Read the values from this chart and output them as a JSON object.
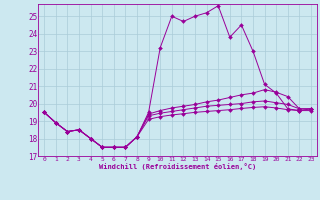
{
  "xlabel": "Windchill (Refroidissement éolien,°C)",
  "xlim": [
    -0.5,
    23.5
  ],
  "ylim": [
    17,
    25.7
  ],
  "yticks": [
    17,
    18,
    19,
    20,
    21,
    22,
    23,
    24,
    25
  ],
  "xticks": [
    0,
    1,
    2,
    3,
    4,
    5,
    6,
    7,
    8,
    9,
    10,
    11,
    12,
    13,
    14,
    15,
    16,
    17,
    18,
    19,
    20,
    21,
    22,
    23
  ],
  "background_color": "#cce8f0",
  "grid_color": "#aaccd8",
  "line_color": "#990099",
  "lines": [
    [
      19.5,
      18.9,
      18.4,
      18.5,
      18.0,
      17.5,
      17.5,
      17.5,
      18.1,
      19.5,
      23.2,
      25.0,
      24.7,
      25.0,
      25.2,
      25.6,
      23.8,
      24.5,
      23.0,
      21.1,
      20.6,
      19.7,
      19.6,
      19.7
    ],
    [
      19.5,
      18.9,
      18.4,
      18.5,
      18.0,
      17.5,
      17.5,
      17.5,
      18.1,
      19.4,
      19.6,
      19.75,
      19.85,
      19.95,
      20.1,
      20.2,
      20.35,
      20.5,
      20.6,
      20.8,
      20.65,
      20.4,
      19.7,
      19.7
    ],
    [
      19.5,
      18.9,
      18.4,
      18.5,
      18.0,
      17.5,
      17.5,
      17.5,
      18.1,
      19.3,
      19.45,
      19.55,
      19.65,
      19.75,
      19.85,
      19.9,
      19.95,
      20.0,
      20.1,
      20.15,
      20.05,
      19.95,
      19.7,
      19.7
    ],
    [
      19.5,
      18.9,
      18.4,
      18.5,
      18.0,
      17.5,
      17.5,
      17.5,
      18.1,
      19.1,
      19.25,
      19.35,
      19.42,
      19.5,
      19.55,
      19.6,
      19.65,
      19.72,
      19.78,
      19.82,
      19.75,
      19.65,
      19.6,
      19.6
    ]
  ]
}
